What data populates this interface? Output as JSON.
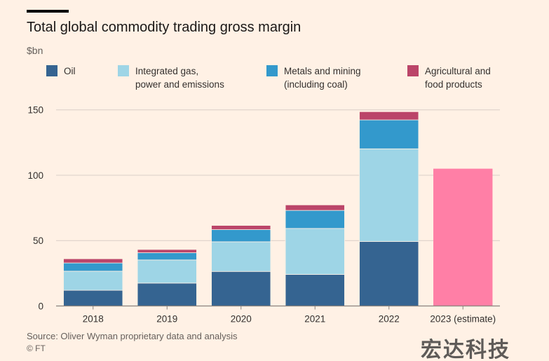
{
  "title": "Total global commodity trading gross margin",
  "unit": "$bn",
  "source": "Source: Oliver Wyman proprietary data and analysis",
  "credit": "© FT",
  "watermark": "宏达科技",
  "chart_data": {
    "type": "bar",
    "stacked": true,
    "title": "Total global commodity trading gross margin",
    "ylabel": "$bn",
    "ylim": [
      0,
      150
    ],
    "yticks": [
      0,
      50,
      100,
      150
    ],
    "grid": true,
    "legend": "top",
    "categories": [
      "2018",
      "2019",
      "2020",
      "2021",
      "2022",
      "2023 (estimate)"
    ],
    "series": [
      {
        "name": "Oil",
        "color": "#356491",
        "values": [
          12.0,
          17.5,
          26.4,
          24.1,
          49.3,
          null
        ]
      },
      {
        "name": "Integrated gas, power and emissions",
        "color": "#9ED5E6",
        "values": [
          14.6,
          17.7,
          22.7,
          35.2,
          70.9,
          null
        ]
      },
      {
        "name": "Metals and mining (including coal)",
        "color": "#3399CC",
        "values": [
          6.3,
          5.5,
          9.3,
          13.8,
          22.1,
          null
        ]
      },
      {
        "name": "Agricultural and food products",
        "color": "#BB4569",
        "values": [
          3.2,
          2.5,
          3.2,
          4.2,
          6.3,
          null
        ]
      }
    ],
    "estimate": {
      "category": "2023 (estimate)",
      "value": 105,
      "color": "#FF7FA6"
    }
  },
  "legend": [
    {
      "line1": "Oil",
      "line2": ""
    },
    {
      "line1": "Integrated gas,",
      "line2": "power and emissions"
    },
    {
      "line1": "Metals and mining",
      "line2": "(including coal)"
    },
    {
      "line1": "Agricultural and",
      "line2": "food products"
    }
  ]
}
